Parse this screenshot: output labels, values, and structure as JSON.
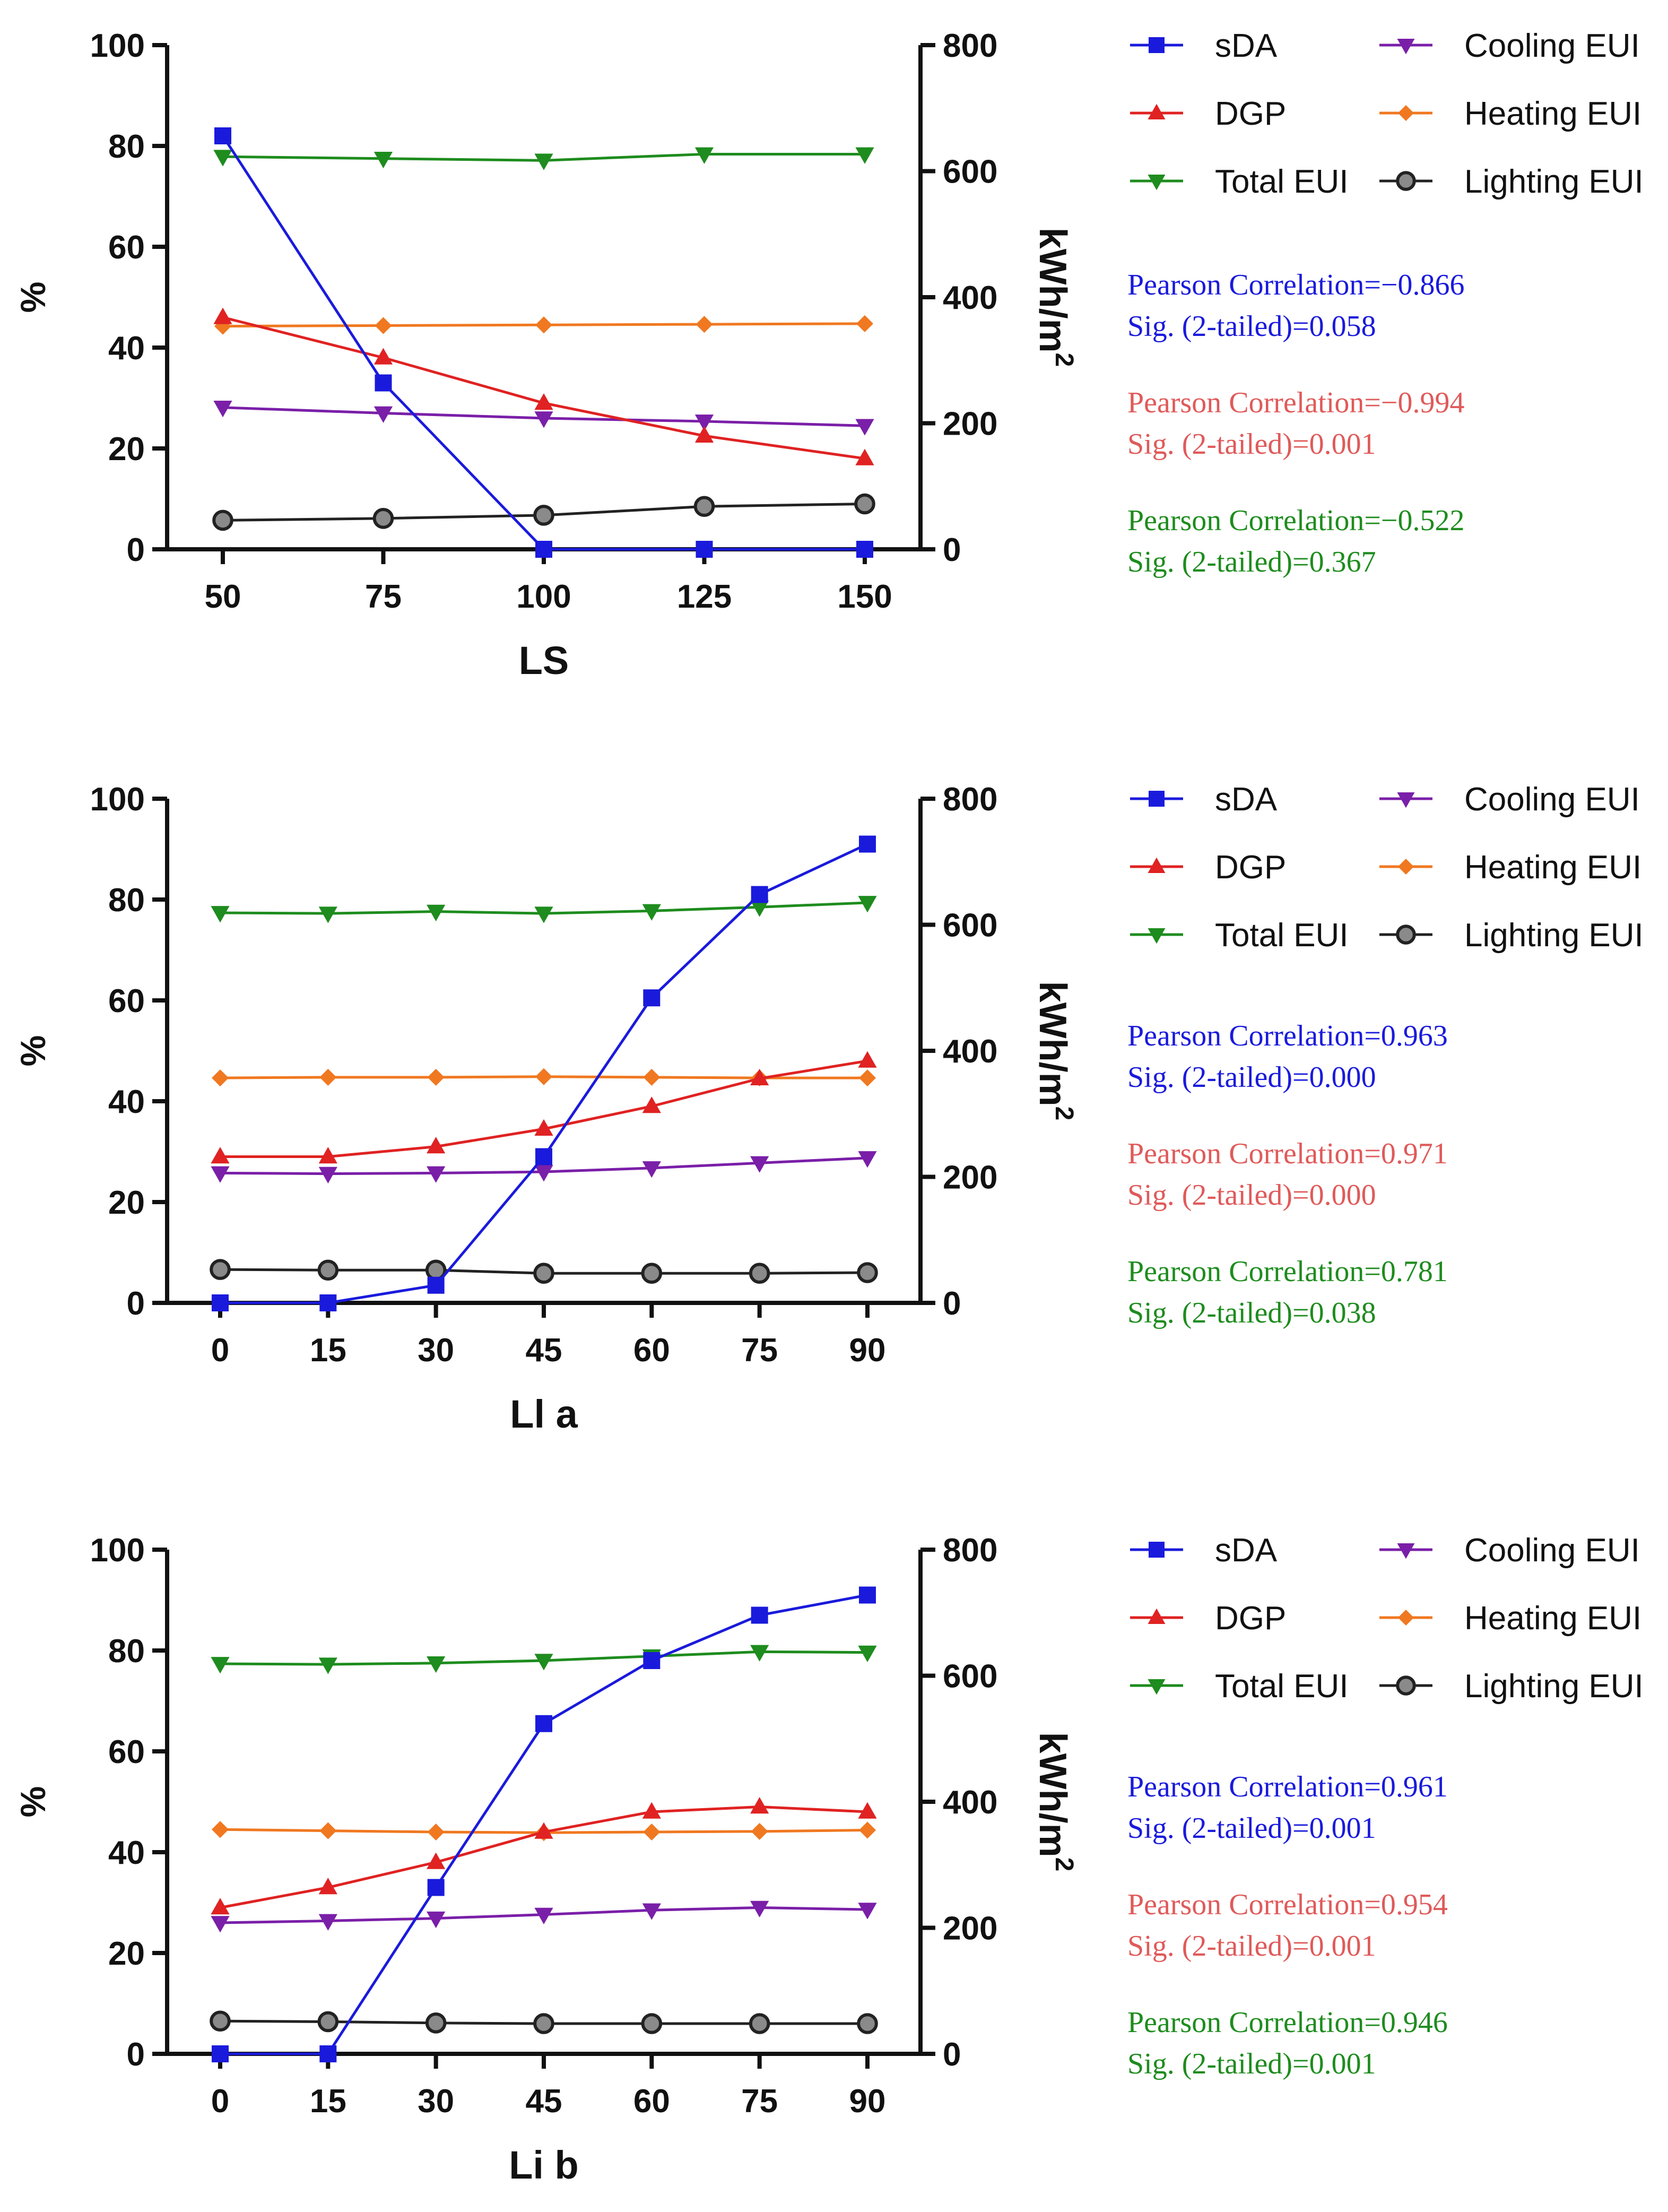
{
  "figure": {
    "colors": {
      "sDA": "#1a1adc",
      "DGP": "#e02222",
      "Total EUI": "#1e8c1e",
      "Cooling EUI": "#7a1fa8",
      "Heating EUI": "#f07820",
      "Lighting EUI": "#222222",
      "lighting_fill": "#8a8a8a"
    },
    "legend": {
      "entries": [
        "sDA",
        "DGP",
        "Total EUI",
        "Cooling EUI",
        "Heating EUI",
        "Lighting EUI"
      ],
      "markers": {
        "sDA": "square-icon",
        "DGP": "triangle-up-icon",
        "Total EUI": "triangle-down-icon",
        "Cooling EUI": "triangle-down-icon",
        "Heating EUI": "diamond-icon",
        "Lighting EUI": "circle-icon"
      }
    }
  },
  "chart_data": [
    {
      "type": "line",
      "panel": "LS",
      "title": "",
      "xlabel": "LS",
      "ylabel": "%",
      "ylabel_right": "kWh/m",
      "ylabel_right_sup": "2",
      "categories": [
        "50",
        "75",
        "100",
        "125",
        "150"
      ],
      "ylim": [
        0,
        100
      ],
      "ylim_right": [
        0,
        800
      ],
      "yticks": [
        "0",
        "20",
        "40",
        "60",
        "80",
        "100"
      ],
      "yticks_right": [
        "0",
        "200",
        "400",
        "600",
        "800"
      ],
      "series": [
        {
          "name": "sDA",
          "axis": "left",
          "values": [
            82,
            33,
            0,
            0,
            0
          ]
        },
        {
          "name": "DGP",
          "axis": "left",
          "values": [
            46,
            38,
            29,
            22.5,
            18
          ]
        },
        {
          "name": "Total EUI",
          "axis": "right",
          "values": [
            623,
            620,
            617,
            627,
            627
          ]
        },
        {
          "name": "Cooling EUI",
          "axis": "right",
          "values": [
            225,
            216,
            208,
            203,
            196
          ]
        },
        {
          "name": "Heating EUI",
          "axis": "right",
          "values": [
            354,
            355,
            356,
            357,
            358
          ]
        },
        {
          "name": "Lighting EUI",
          "axis": "right",
          "values": [
            46,
            49,
            54,
            68,
            72
          ]
        }
      ],
      "stats": [
        {
          "series": "sDA",
          "pearson": "Pearson Correlation=−0.866",
          "sig": "Sig. (2-tailed)=0.058"
        },
        {
          "series": "DGP",
          "pearson": "Pearson Correlation=−0.994",
          "sig": "Sig. (2-tailed)=0.001"
        },
        {
          "series": "Total EUI",
          "pearson": "Pearson Correlation=−0.522",
          "sig": "Sig. (2-tailed)=0.367"
        }
      ]
    },
    {
      "type": "line",
      "panel": "Ll a",
      "title": "",
      "xlabel": "Ll a",
      "ylabel": "%",
      "ylabel_right": "kWh/m",
      "ylabel_right_sup": "2",
      "categories": [
        "0",
        "15",
        "30",
        "45",
        "60",
        "75",
        "90"
      ],
      "ylim": [
        0,
        100
      ],
      "ylim_right": [
        0,
        800
      ],
      "yticks": [
        "0",
        "20",
        "40",
        "60",
        "80",
        "100"
      ],
      "yticks_right": [
        "0",
        "200",
        "400",
        "600",
        "800"
      ],
      "series": [
        {
          "name": "sDA",
          "axis": "left",
          "values": [
            0,
            0,
            3.5,
            29,
            60.5,
            81,
            91
          ]
        },
        {
          "name": "DGP",
          "axis": "left",
          "values": [
            29,
            29,
            31,
            34.5,
            39,
            44.5,
            48
          ]
        },
        {
          "name": "Total EUI",
          "axis": "right",
          "values": [
            619,
            618,
            621,
            618,
            622,
            628,
            635
          ]
        },
        {
          "name": "Cooling EUI",
          "axis": "right",
          "values": [
            206,
            205,
            206,
            208,
            214,
            222,
            230
          ]
        },
        {
          "name": "Heating EUI",
          "axis": "right",
          "values": [
            357,
            358,
            358,
            359,
            358,
            357,
            357
          ]
        },
        {
          "name": "Lighting EUI",
          "axis": "right",
          "values": [
            53,
            52,
            52,
            47,
            47,
            47,
            48
          ]
        }
      ],
      "stats": [
        {
          "series": "sDA",
          "pearson": "Pearson Correlation=0.963",
          "sig": "Sig. (2-tailed)=0.000"
        },
        {
          "series": "DGP",
          "pearson": "Pearson Correlation=0.971",
          "sig": "Sig. (2-tailed)=0.000"
        },
        {
          "series": "Total EUI",
          "pearson": "Pearson Correlation=0.781",
          "sig": "Sig. (2-tailed)=0.038"
        }
      ]
    },
    {
      "type": "line",
      "panel": "Li b",
      "title": "",
      "xlabel": "Li b",
      "ylabel": "%",
      "ylabel_right": "kWh/m",
      "ylabel_right_sup": "2",
      "categories": [
        "0",
        "15",
        "30",
        "45",
        "60",
        "75",
        "90"
      ],
      "ylim": [
        0,
        100
      ],
      "ylim_right": [
        0,
        800
      ],
      "yticks": [
        "0",
        "20",
        "40",
        "60",
        "80",
        "100"
      ],
      "yticks_right": [
        "0",
        "200",
        "400",
        "600",
        "800"
      ],
      "series": [
        {
          "name": "sDA",
          "axis": "left",
          "values": [
            0,
            0,
            33,
            65.5,
            78,
            87,
            91
          ]
        },
        {
          "name": "DGP",
          "axis": "left",
          "values": [
            29,
            33,
            38,
            44,
            48,
            49,
            48
          ]
        },
        {
          "name": "Total EUI",
          "axis": "right",
          "values": [
            619,
            618,
            620,
            624,
            631,
            638,
            637
          ]
        },
        {
          "name": "Cooling EUI",
          "axis": "right",
          "values": [
            208,
            211,
            215,
            221,
            228,
            232,
            229
          ]
        },
        {
          "name": "Heating EUI",
          "axis": "right",
          "values": [
            356,
            354,
            352,
            351,
            352,
            353,
            355
          ]
        },
        {
          "name": "Lighting EUI",
          "axis": "right",
          "values": [
            52,
            51,
            49,
            48,
            48,
            48,
            48
          ]
        }
      ],
      "stats": [
        {
          "series": "sDA",
          "pearson": "Pearson Correlation=0.961",
          "sig": "Sig. (2-tailed)=0.001"
        },
        {
          "series": "DGP",
          "pearson": "Pearson Correlation=0.954",
          "sig": "Sig. (2-tailed)=0.001"
        },
        {
          "series": "Total EUI",
          "pearson": "Pearson Correlation=0.946",
          "sig": "Sig. (2-tailed)=0.001"
        }
      ]
    }
  ]
}
